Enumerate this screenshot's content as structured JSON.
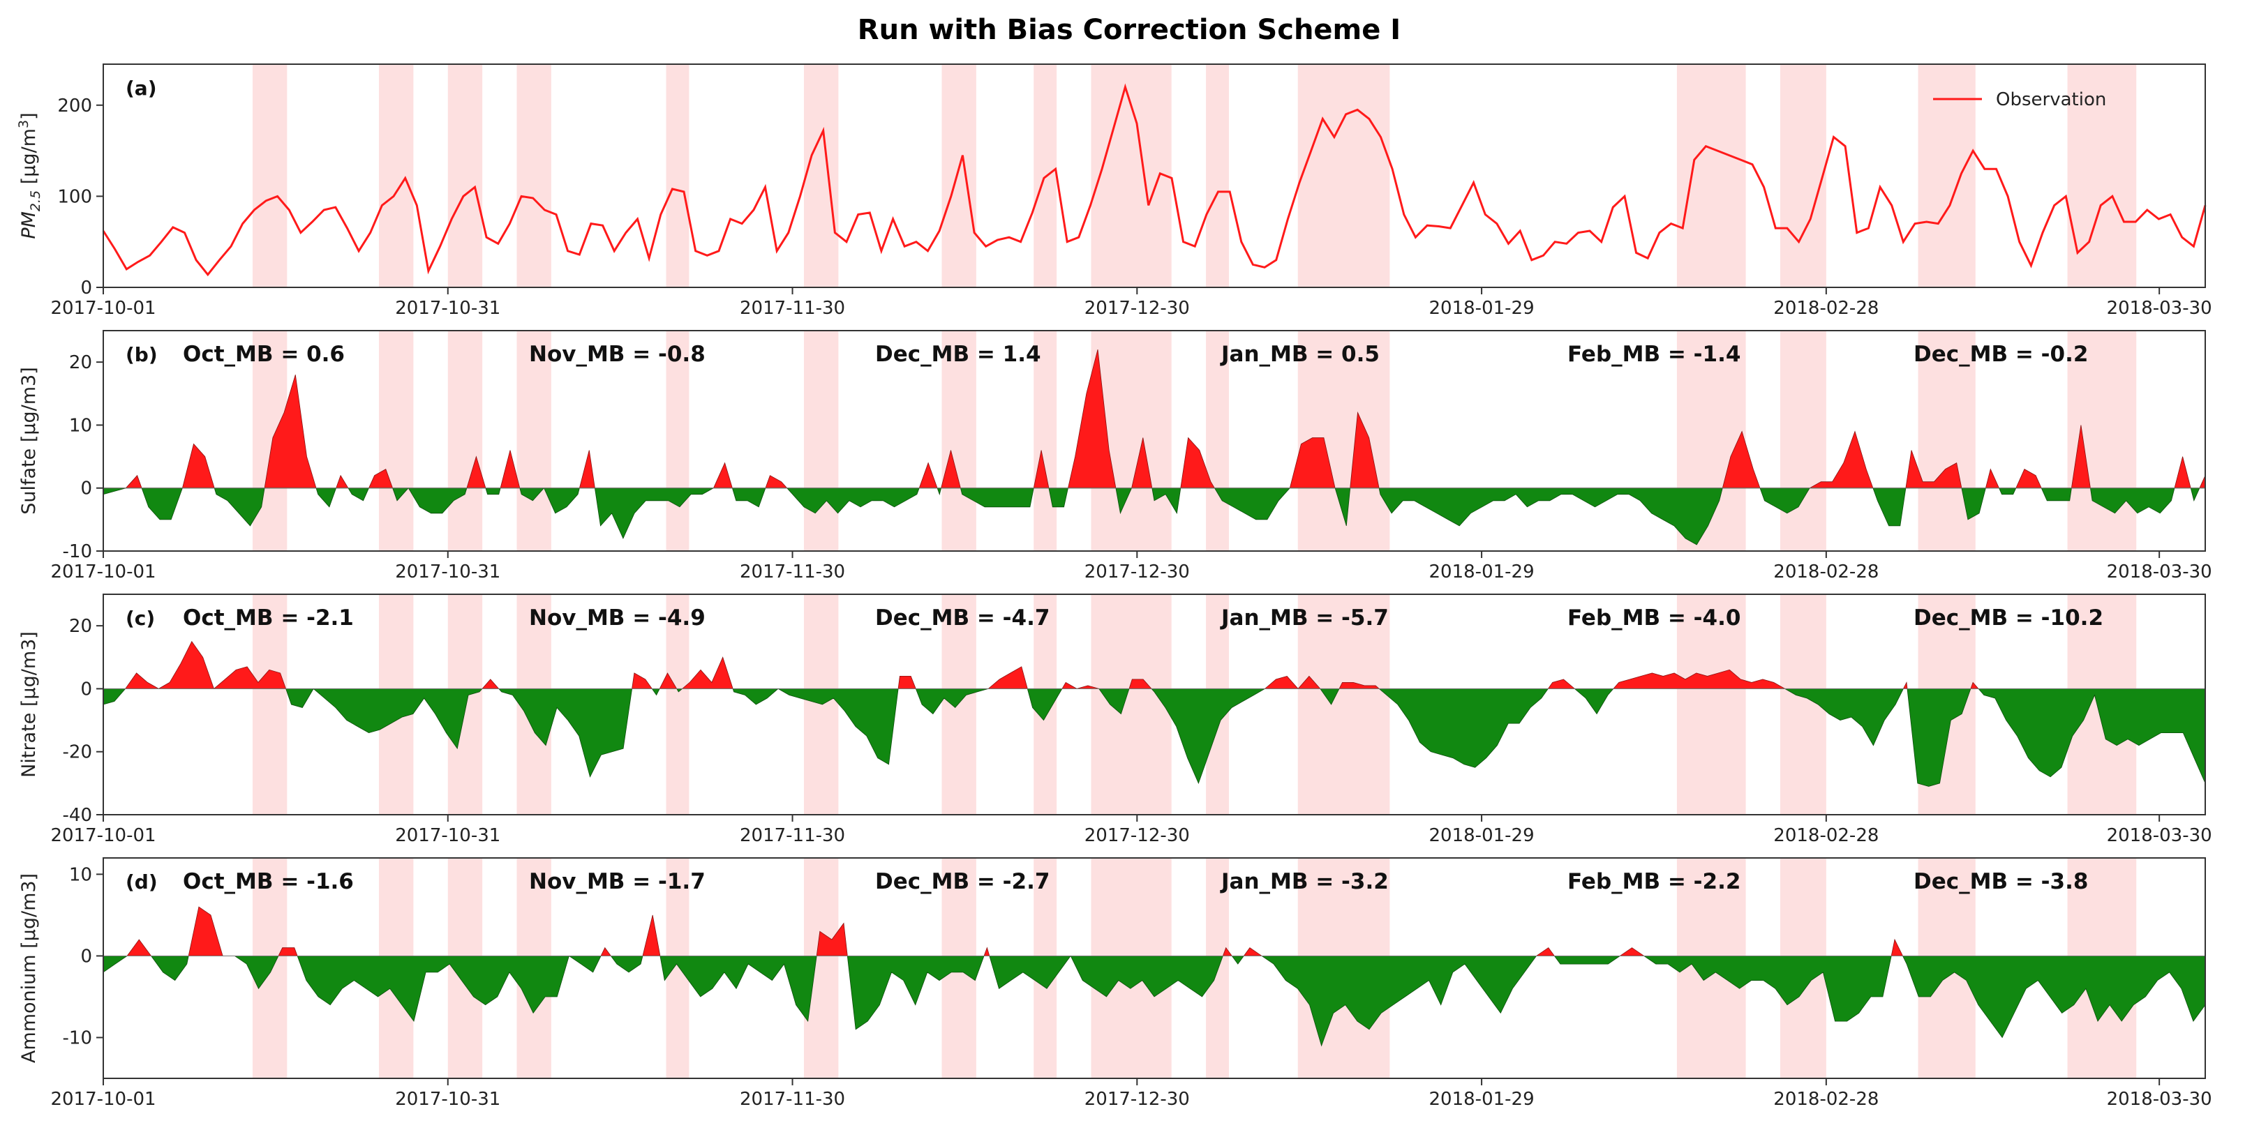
{
  "chart_data": {
    "title": "Run with Bias Correction Scheme I",
    "type": "line",
    "x_tick_labels": [
      "2017-10-01",
      "2017-10-31",
      "2017-11-30",
      "2017-12-30",
      "2018-01-29",
      "2018-02-28",
      "2018-03-30"
    ],
    "x_tick_days": [
      0,
      30,
      60,
      90,
      120,
      150,
      179
    ],
    "x_range_days": [
      0,
      183
    ],
    "shaded_day_ranges": [
      [
        13,
        16
      ],
      [
        24,
        27
      ],
      [
        30,
        33
      ],
      [
        36,
        39
      ],
      [
        49,
        51
      ],
      [
        61,
        64
      ],
      [
        73,
        76
      ],
      [
        81,
        83
      ],
      [
        86,
        93
      ],
      [
        96,
        98
      ],
      [
        104,
        112
      ],
      [
        137,
        143
      ],
      [
        146,
        150
      ],
      [
        158,
        163
      ],
      [
        171,
        177
      ]
    ],
    "shade_color": "#fde0e0",
    "pos_color": "#ff1a1a",
    "neg_color": "#118811",
    "panels": [
      {
        "id": "a",
        "label": "(a)",
        "ylabel": "PM2.5 [μg/m3]",
        "ylabel_main": "PM",
        "ylabel_sub": "2.5",
        "ylabel_rest": " [μg/m",
        "ylabel_sup": "3",
        "ylabel_end": "]",
        "kind": "line",
        "ylim": [
          0,
          245
        ],
        "yticks": [
          "0",
          "100",
          "200"
        ],
        "ytick_values": [
          0,
          100,
          200
        ],
        "legend": "Observation",
        "series_name": "Observation",
        "values": [
          62,
          42,
          20,
          28,
          35,
          50,
          66,
          60,
          30,
          14,
          30,
          45,
          70,
          85,
          95,
          100,
          85,
          60,
          72,
          85,
          88,
          65,
          40,
          60,
          90,
          100,
          120,
          90,
          18,
          45,
          75,
          100,
          110,
          55,
          48,
          70,
          100,
          98,
          85,
          80,
          40,
          36,
          70,
          68,
          40,
          60,
          75,
          32,
          80,
          108,
          105,
          40,
          35,
          40,
          75,
          70,
          85,
          110,
          40,
          60,
          100,
          145,
          172,
          60,
          50,
          80,
          82,
          40,
          75,
          45,
          50,
          40,
          62,
          100,
          145,
          60,
          45,
          52,
          55,
          50,
          82,
          120,
          130,
          50,
          55,
          90,
          130,
          175,
          220,
          180,
          90,
          125,
          120,
          50,
          45,
          80,
          105,
          105,
          50,
          25,
          22,
          30,
          75,
          115,
          150,
          185,
          165,
          190,
          195,
          185,
          165,
          130,
          80,
          55,
          68,
          67,
          65,
          90,
          115,
          80,
          70,
          48,
          62,
          30,
          35,
          50,
          48,
          60,
          62,
          50,
          88,
          100,
          38,
          32,
          60,
          70,
          65,
          140,
          155,
          150,
          145,
          140,
          135,
          110,
          65,
          65,
          50,
          75,
          120,
          165,
          155,
          60,
          65,
          110,
          90,
          50,
          70,
          72,
          70,
          90,
          125,
          150,
          130,
          130,
          100,
          50,
          24,
          60,
          90,
          100,
          38,
          50,
          90,
          100,
          72,
          72,
          85,
          75,
          80,
          55,
          45,
          90
        ]
      },
      {
        "id": "b",
        "label": "(b)",
        "ylabel": "Sulfate [μg/m3]",
        "kind": "bias",
        "ylim": [
          -10,
          25
        ],
        "yticks": [
          "-10",
          "0",
          "10",
          "20"
        ],
        "ytick_values": [
          -10,
          0,
          10,
          20
        ],
        "mb_labels": [
          "Oct_MB = 0.6",
          "Nov_MB = -0.8",
          "Dec_MB = 1.4",
          "Jan_MB = 0.5",
          "Feb_MB = -1.4",
          "Dec_MB = -0.2"
        ],
        "values": [
          -1,
          -0.5,
          0,
          2,
          -3,
          -5,
          -5,
          0,
          7,
          5,
          -1,
          -2,
          -4,
          -6,
          -3,
          8,
          12,
          18,
          5,
          -1,
          -3,
          2,
          -1,
          -2,
          2,
          3,
          -2,
          0,
          -3,
          -4,
          -4,
          -2,
          -1,
          5,
          -1,
          -1,
          6,
          -1,
          -2,
          0,
          -4,
          -3,
          -1,
          6,
          -6,
          -4,
          -8,
          -4,
          -2,
          -2,
          -2,
          -3,
          -1,
          -1,
          0,
          4,
          -2,
          -2,
          -3,
          2,
          1,
          -1,
          -3,
          -4,
          -2,
          -4,
          -2,
          -3,
          -2,
          -2,
          -3,
          -2,
          -1,
          4,
          -1,
          6,
          -1,
          -2,
          -3,
          -3,
          -3,
          -3,
          -3,
          6,
          -3,
          -3,
          5,
          15,
          22,
          6,
          -4,
          0,
          8,
          -2,
          -1,
          -4,
          8,
          6,
          1,
          -2,
          -3,
          -4,
          -5,
          -5,
          -2,
          0,
          7,
          8,
          8,
          0,
          -6,
          12,
          8,
          -1,
          -4,
          -2,
          -2,
          -3,
          -4,
          -5,
          -6,
          -4,
          -3,
          -2,
          -2,
          -1,
          -3,
          -2,
          -2,
          -1,
          -1,
          -2,
          -3,
          -2,
          -1,
          -1,
          -2,
          -4,
          -5,
          -6,
          -8,
          -9,
          -6,
          -2,
          5,
          9,
          3,
          -2,
          -3,
          -4,
          -3,
          0,
          1,
          1,
          4,
          9,
          3,
          -2,
          -6,
          -6,
          6,
          1,
          1,
          3,
          4,
          -5,
          -4,
          3,
          -1,
          -1,
          3,
          2,
          -2,
          -2,
          -2,
          10,
          -2,
          -3,
          -4,
          -2,
          -4,
          -3,
          -4,
          -2,
          5,
          -2,
          2
        ]
      },
      {
        "id": "c",
        "label": "(c)",
        "ylabel": "Nitrate [μg/m3]",
        "kind": "bias",
        "ylim": [
          -40,
          30
        ],
        "yticks": [
          "-40",
          "-20",
          "0",
          "20"
        ],
        "ytick_values": [
          -40,
          -20,
          0,
          20
        ],
        "mb_labels": [
          "Oct_MB = -2.1",
          "Nov_MB = -4.9",
          "Dec_MB = -4.7",
          "Jan_MB = -5.7",
          "Feb_MB = -4.0",
          "Dec_MB = -10.2"
        ],
        "values": [
          -5,
          -4,
          0,
          5,
          2,
          0,
          2,
          8,
          15,
          10,
          0,
          3,
          6,
          7,
          2,
          6,
          5,
          -5,
          -6,
          0,
          -3,
          -6,
          -10,
          -12,
          -14,
          -13,
          -11,
          -9,
          -8,
          -3,
          -8,
          -14,
          -19,
          -2,
          -1,
          3,
          -1,
          -2,
          -7,
          -14,
          -18,
          -6,
          -10,
          -15,
          -28,
          -21,
          -20,
          -19,
          5,
          3,
          -2,
          5,
          -1,
          2,
          6,
          2,
          10,
          -1,
          -2,
          -5,
          -3,
          0,
          -2,
          -3,
          -4,
          -5,
          -3,
          -7,
          -12,
          -15,
          -22,
          -24,
          4,
          4,
          -5,
          -8,
          -3,
          -6,
          -2,
          -1,
          0,
          3,
          5,
          7,
          -6,
          -10,
          -4,
          2,
          0,
          1,
          0,
          -5,
          -8,
          3,
          3,
          -1,
          -6,
          -12,
          -22,
          -30,
          -20,
          -10,
          -6,
          -4,
          -2,
          0,
          3,
          4,
          0,
          4,
          0,
          -5,
          2,
          2,
          1,
          1,
          -2,
          -5,
          -10,
          -17,
          -20,
          -21,
          -22,
          -24,
          -25,
          -22,
          -18,
          -11,
          -11,
          -6,
          -3,
          2,
          3,
          0,
          -3,
          -8,
          -2,
          2,
          3,
          4,
          5,
          4,
          5,
          3,
          5,
          4,
          5,
          6,
          3,
          2,
          3,
          2,
          0,
          -2,
          -3,
          -5,
          -8,
          -10,
          -9,
          -12,
          -18,
          -10,
          -5,
          2,
          -30,
          -31,
          -30,
          -10,
          -8,
          2,
          -2,
          -3,
          -10,
          -15,
          -22,
          -26,
          -28,
          -25,
          -15,
          -10,
          -2,
          -16,
          -18,
          -16,
          -18,
          -16,
          -14,
          -14,
          -14,
          -22,
          -30
        ]
      },
      {
        "id": "d",
        "label": "(d)",
        "ylabel": "Ammonium [μg/m3]",
        "kind": "bias",
        "ylim": [
          -15,
          12
        ],
        "yticks": [
          "-10",
          "0",
          "10"
        ],
        "ytick_values": [
          -10,
          0,
          10
        ],
        "mb_labels": [
          "Oct_MB = -1.6",
          "Nov_MB = -1.7",
          "Dec_MB = -2.7",
          "Jan_MB = -3.2",
          "Feb_MB = -2.2",
          "Dec_MB = -3.8"
        ],
        "values": [
          -2,
          -1,
          0,
          2,
          0,
          -2,
          -3,
          -1,
          6,
          5,
          0,
          0,
          -1,
          -4,
          -2,
          1,
          1,
          -3,
          -5,
          -6,
          -4,
          -3,
          -4,
          -5,
          -4,
          -6,
          -8,
          -2,
          -2,
          -1,
          -3,
          -5,
          -6,
          -5,
          -2,
          -4,
          -7,
          -5,
          -5,
          0,
          -1,
          -2,
          1,
          -1,
          -2,
          -1,
          5,
          -3,
          -1,
          -3,
          -5,
          -4,
          -2,
          -4,
          -1,
          -2,
          -3,
          -1,
          -6,
          -8,
          3,
          2,
          4,
          -9,
          -8,
          -6,
          -2,
          -3,
          -6,
          -2,
          -3,
          -2,
          -2,
          -3,
          1,
          -4,
          -3,
          -2,
          -3,
          -4,
          -2,
          0,
          -3,
          -4,
          -5,
          -3,
          -4,
          -3,
          -5,
          -4,
          -3,
          -4,
          -5,
          -3,
          1,
          -1,
          1,
          0,
          -1,
          -3,
          -4,
          -6,
          -11,
          -7,
          -6,
          -8,
          -9,
          -7,
          -6,
          -5,
          -4,
          -3,
          -6,
          -2,
          -1,
          -3,
          -5,
          -7,
          -4,
          -2,
          0,
          1,
          -1,
          -1,
          -1,
          -1,
          -1,
          0,
          1,
          0,
          -1,
          -1,
          -2,
          -1,
          -3,
          -2,
          -3,
          -4,
          -3,
          -3,
          -4,
          -6,
          -5,
          -3,
          -2,
          -8,
          -8,
          -7,
          -5,
          -5,
          2,
          -1,
          -5,
          -5,
          -3,
          -2,
          -3,
          -6,
          -8,
          -10,
          -7,
          -4,
          -3,
          -5,
          -7,
          -6,
          -4,
          -8,
          -6,
          -8,
          -6,
          -5,
          -3,
          -2,
          -4,
          -8,
          -6
        ]
      }
    ]
  }
}
